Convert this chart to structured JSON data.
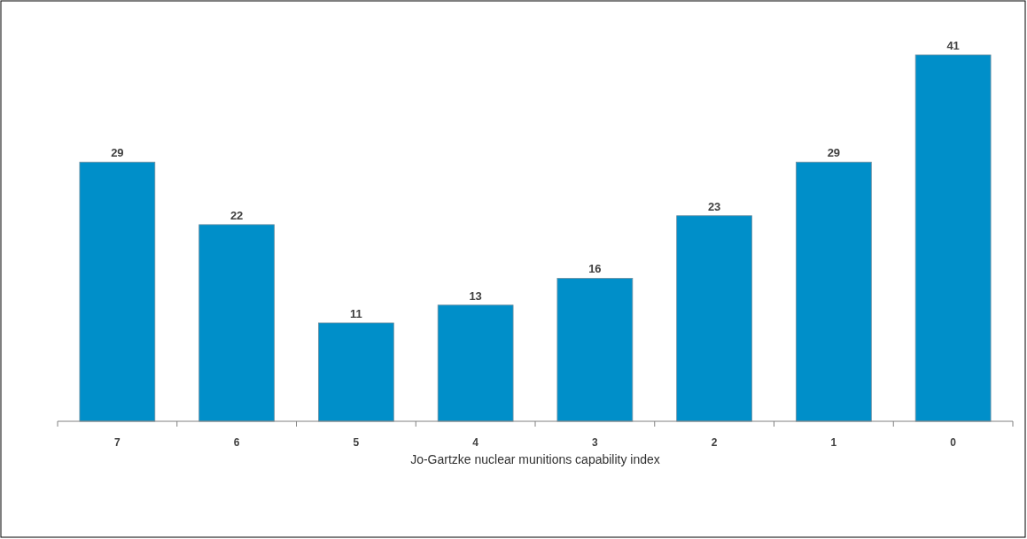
{
  "chart_data": {
    "type": "bar",
    "xlabel": "Jo-Gartzke nuclear munitions capability index",
    "categories": [
      "7",
      "6",
      "5",
      "4",
      "3",
      "2",
      "1",
      "0"
    ],
    "values": [
      29,
      22,
      11,
      13,
      16,
      23,
      29,
      41
    ],
    "color": "#008fc9",
    "data_labels": true
  }
}
